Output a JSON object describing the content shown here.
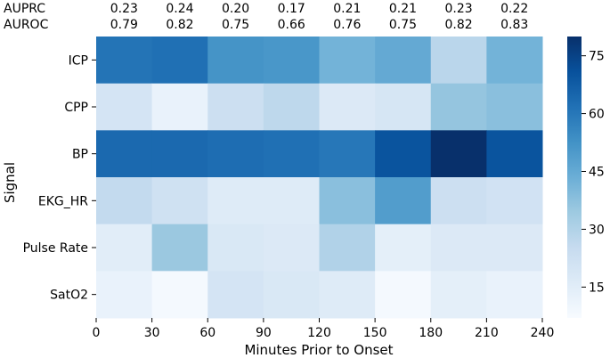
{
  "chart_data": {
    "type": "heatmap",
    "title": "",
    "xlabel": "Minutes Prior to Onset",
    "ylabel": "Signal",
    "rows": [
      "ICP",
      "CPP",
      "BP",
      "EKG_HR",
      "Pulse Rate",
      "SatO2"
    ],
    "x_ticks": [
      "0",
      "30",
      "60",
      "90",
      "120",
      "150",
      "180",
      "210",
      "240"
    ],
    "values": [
      [
        61,
        62,
        52,
        51,
        42,
        45,
        28,
        42
      ],
      [
        20,
        12,
        23,
        27,
        17,
        19,
        36,
        38
      ],
      [
        64,
        64,
        63,
        62,
        60,
        70,
        80,
        70
      ],
      [
        26,
        22,
        16,
        16,
        38,
        49,
        23,
        21
      ],
      [
        15,
        35,
        18,
        17,
        30,
        14,
        17,
        17
      ],
      [
        12,
        8,
        20,
        18,
        16,
        8,
        14,
        12
      ]
    ],
    "colorbar": {
      "min": 7,
      "max": 80,
      "ticks": [
        "15",
        "30",
        "45",
        "60",
        "75"
      ],
      "tick_values": [
        15,
        30,
        45,
        60,
        75
      ]
    },
    "metrics": [
      {
        "label": "AUPRC",
        "values": [
          "0.23",
          "0.24",
          "0.20",
          "0.17",
          "0.21",
          "0.21",
          "0.23",
          "0.22"
        ]
      },
      {
        "label": "AUROC",
        "values": [
          "0.79",
          "0.82",
          "0.75",
          "0.66",
          "0.76",
          "0.75",
          "0.82",
          "0.83"
        ]
      }
    ],
    "colormap": [
      "#f7fbff",
      "#deebf7",
      "#c6dbef",
      "#9ecae1",
      "#6baed6",
      "#4292c6",
      "#2171b5",
      "#08519c",
      "#08306b"
    ]
  }
}
